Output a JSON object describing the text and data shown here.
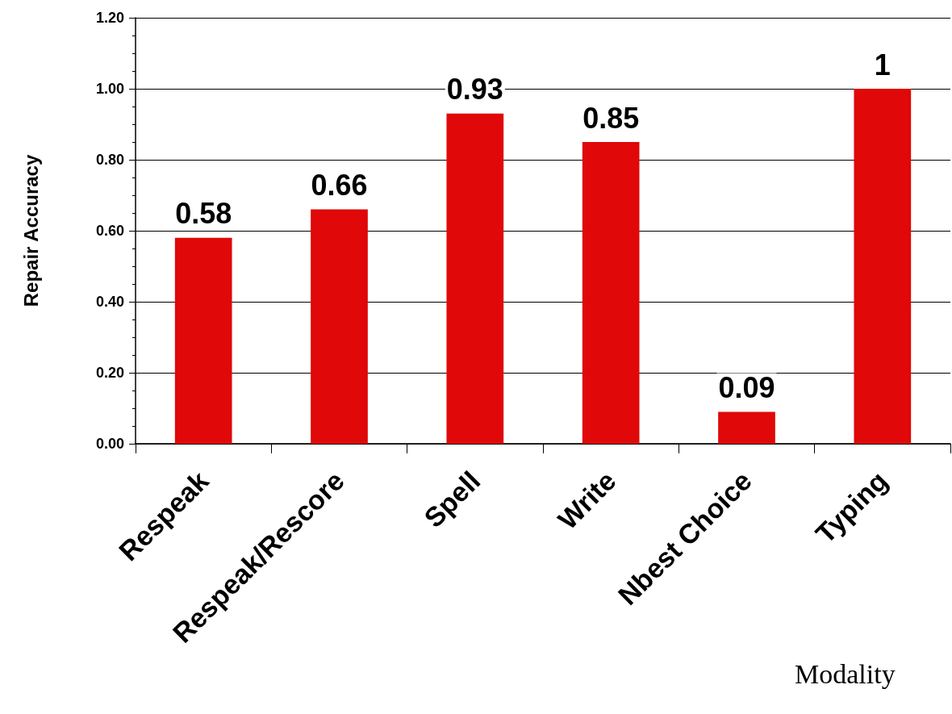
{
  "chart_data": {
    "type": "bar",
    "ylabel": "Repair Accuracy",
    "xlabel": "Modality",
    "categories": [
      "Respeak",
      "Respeak/Rescore",
      "Spell",
      "Write",
      "Nbest Choice",
      "Typing"
    ],
    "values": [
      0.58,
      0.66,
      0.93,
      0.85,
      0.09,
      1
    ],
    "color": "#e00808",
    "ylim": [
      0,
      1.2
    ],
    "yticks": [
      {
        "value": 0,
        "label": "0.00"
      },
      {
        "value": 0.2,
        "label": "0.20"
      },
      {
        "value": 0.4,
        "label": "0.40"
      },
      {
        "value": 0.6,
        "label": "0.60"
      },
      {
        "value": 0.8,
        "label": "0.80"
      },
      {
        "value": 1,
        "label": "1.00"
      },
      {
        "value": 1.2,
        "label": "1.20"
      }
    ],
    "grid": "y",
    "data_labels": true
  }
}
